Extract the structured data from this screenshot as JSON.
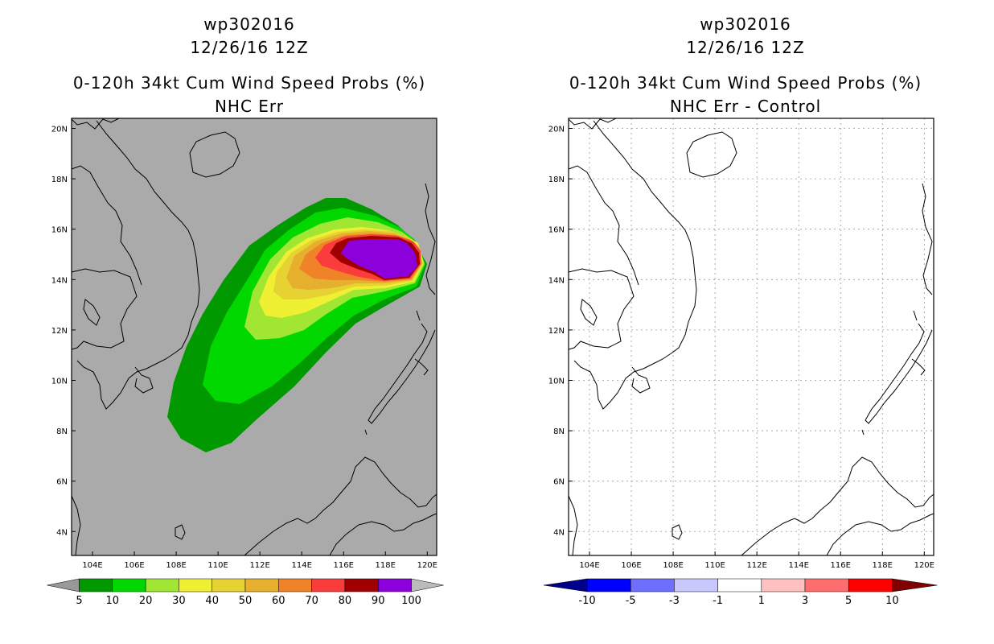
{
  "left_panel": {
    "title_line1": "wp302016",
    "title_line2": "12/26/16 12Z",
    "title_line3": "0-120h 34kt Cum Wind Speed Probs (%)",
    "title_line4": "NHC Err",
    "colorbar": {
      "labels": [
        "5",
        "10",
        "20",
        "30",
        "40",
        "50",
        "60",
        "70",
        "80",
        "90",
        "100"
      ],
      "colors": [
        "#009a00",
        "#00d800",
        "#a0e632",
        "#f0f032",
        "#e6d232",
        "#e6af2d",
        "#f08228",
        "#fa3c3c",
        "#a00000",
        "#8c00dc"
      ],
      "under_color": "#999999",
      "over_color": "#bbbbbb"
    }
  },
  "right_panel": {
    "title_line1": "wp302016",
    "title_line2": "12/26/16 12Z",
    "title_line3": "0-120h 34kt Cum Wind Speed Probs (%)",
    "title_line4": "NHC Err - Control",
    "colorbar": {
      "labels": [
        "-10",
        "-5",
        "-3",
        "-1",
        "1",
        "3",
        "5",
        "10"
      ],
      "colors": [
        "#0000c8",
        "#0000ff",
        "#6e6eff",
        "#c8c8ff",
        "#ffffff",
        "#ffc0c0",
        "#ff6e6e",
        "#ff0000"
      ],
      "under_color": "#00008c",
      "over_color": "#800000"
    }
  },
  "map": {
    "lon_ticks": [
      "104E",
      "106E",
      "108E",
      "110E",
      "112E",
      "114E",
      "116E",
      "118E",
      "120E"
    ],
    "lat_ticks": [
      "20N",
      "18N",
      "16N",
      "14N",
      "12N",
      "10N",
      "8N",
      "6N",
      "4N"
    ],
    "background_color": "#aaaaaa",
    "probability_contours": [
      {
        "level": 5,
        "color": "#009a00"
      },
      {
        "level": 10,
        "color": "#00d800"
      },
      {
        "level": 20,
        "color": "#a0e632"
      },
      {
        "level": 30,
        "color": "#f0f032"
      },
      {
        "level": 40,
        "color": "#e6d232"
      },
      {
        "level": 50,
        "color": "#e6af2d"
      },
      {
        "level": 60,
        "color": "#f08228"
      },
      {
        "level": 70,
        "color": "#fa3c3c"
      },
      {
        "level": 80,
        "color": "#a00000"
      },
      {
        "level": 90,
        "color": "#8c00dc"
      }
    ]
  }
}
